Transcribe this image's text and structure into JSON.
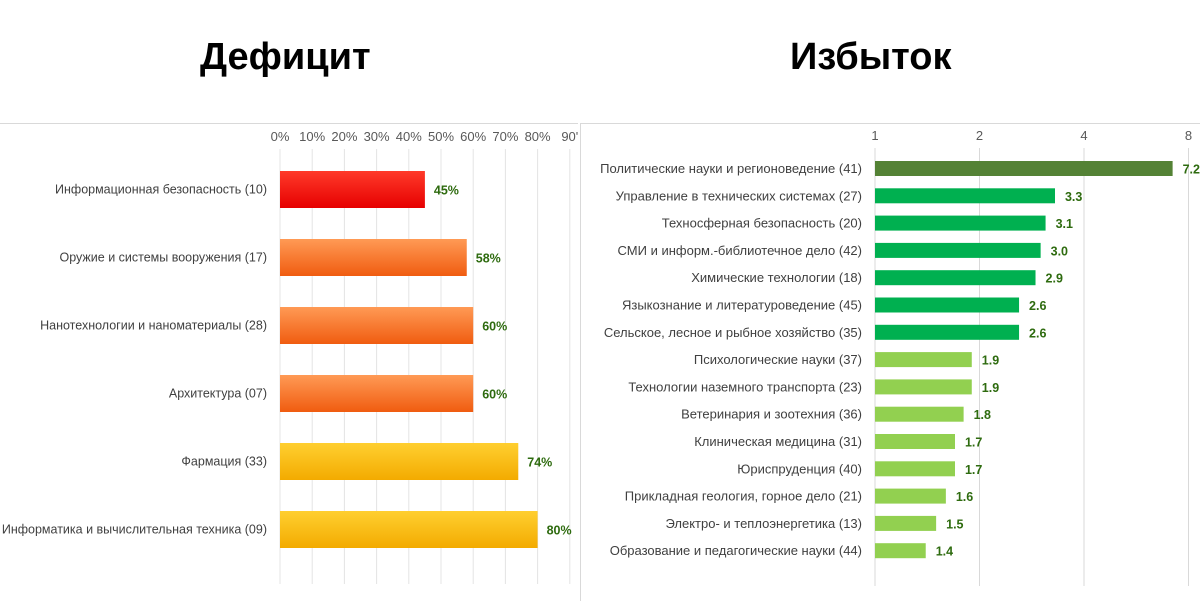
{
  "headings": {
    "left": "Дефицит",
    "right": "Избыток"
  },
  "chart_data": [
    {
      "type": "bar",
      "orientation": "horizontal",
      "title": "Дефицит",
      "xlabel": "",
      "ylabel": "",
      "xlim": [
        0,
        90
      ],
      "x_tick_values": [
        0,
        10,
        20,
        30,
        40,
        50,
        60,
        70,
        80,
        90
      ],
      "x_tick_labels": [
        "0%",
        "10%",
        "20%",
        "30%",
        "40%",
        "50%",
        "60%",
        "70%",
        "80%",
        "90'"
      ],
      "grid": "vertical",
      "legend": "none",
      "categories": [
        "Информационная безопасность (10)",
        "Оружие и системы вооружения (17)",
        "Нанотехнологии и наноматериалы (28)",
        "Архитектура (07)",
        "Фармация (33)",
        "Информатика и вычислительная техника (09)"
      ],
      "values": [
        45,
        58,
        60,
        60,
        74,
        80
      ],
      "value_labels": [
        "45%",
        "58%",
        "60%",
        "60%",
        "74%",
        "80%"
      ],
      "bar_colors": [
        "#ff1a0d",
        "#f7772d",
        "#f7772d",
        "#f7772d",
        "#fdbf0f",
        "#fdbf0f"
      ],
      "label_color": "#2e6b0f"
    },
    {
      "type": "bar",
      "orientation": "horizontal",
      "title": "Избыток",
      "xlabel": "",
      "ylabel": "",
      "x_scale": "log2",
      "xlim": [
        1,
        8
      ],
      "x_tick_values": [
        1,
        2,
        4,
        8
      ],
      "x_tick_labels": [
        "1",
        "2",
        "4",
        "8"
      ],
      "grid": "vertical",
      "legend": "none",
      "categories": [
        "Политические науки и регионоведение (41)",
        "Управление в технических системах (27)",
        "Техносферная безопасность (20)",
        "СМИ и информ.-библиотечное дело (42)",
        "Химические технологии (18)",
        "Языкознание и литературоведение (45)",
        "Сельское, лесное и рыбное хозяйство (35)",
        "Психологические  науки (37)",
        "Технологии наземного транспорта (23)",
        "Ветеринария и зоотехния (36)",
        "Клиническая медицина (31)",
        "Юриспруденция (40)",
        "Прикладная геология, горное дело (21)",
        "Электро- и теплоэнергетика (13)",
        "Образование и педагогические науки (44)"
      ],
      "values": [
        7.2,
        3.3,
        3.1,
        3.0,
        2.9,
        2.6,
        2.6,
        1.9,
        1.9,
        1.8,
        1.7,
        1.7,
        1.6,
        1.5,
        1.4
      ],
      "value_labels": [
        "7.2",
        "3.3",
        "3.1",
        "3.0",
        "2.9",
        "2.6",
        "2.6",
        "1.9",
        "1.9",
        "1.8",
        "1.7",
        "1.7",
        "1.6",
        "1.5",
        "1.4"
      ],
      "bar_colors": [
        "#548235",
        "#00b050",
        "#00b050",
        "#00b050",
        "#00b050",
        "#00b050",
        "#00b050",
        "#92d050",
        "#92d050",
        "#92d050",
        "#92d050",
        "#92d050",
        "#92d050",
        "#92d050",
        "#92d050"
      ],
      "label_color": "#2e6b0f"
    }
  ]
}
